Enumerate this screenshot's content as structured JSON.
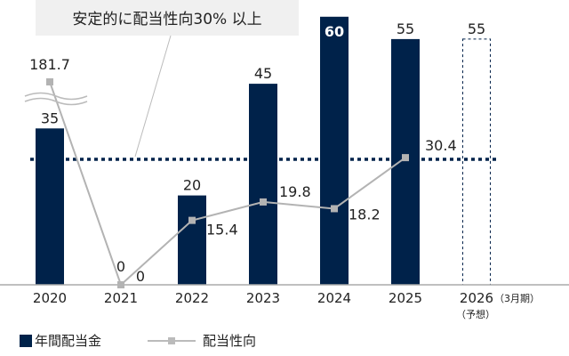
{
  "chart_data": {
    "type": "bar+line",
    "categories": [
      "2020",
      "2021",
      "2022",
      "2023",
      "2024",
      "2025",
      "2026"
    ],
    "category_note": {
      "2026": [
        "（3月期）",
        "（予想）"
      ]
    },
    "series": [
      {
        "name": "年間配当金",
        "type": "bar",
        "values": [
          35,
          0,
          20,
          45,
          60,
          55,
          55
        ],
        "forecast": [
          false,
          false,
          false,
          false,
          false,
          false,
          true
        ],
        "color": "#00224a"
      },
      {
        "name": "配当性向",
        "type": "line",
        "values": [
          181.7,
          0,
          15.4,
          19.8,
          18.2,
          30.4,
          null
        ],
        "color": "#b3b3b3",
        "axis_break_above": true
      }
    ],
    "reference_line": {
      "value": 30,
      "label": "安定的に配当性向30% 以上",
      "color": "#00224a",
      "style": "dotted"
    },
    "legend": "bottom-left",
    "grid": false
  }
}
